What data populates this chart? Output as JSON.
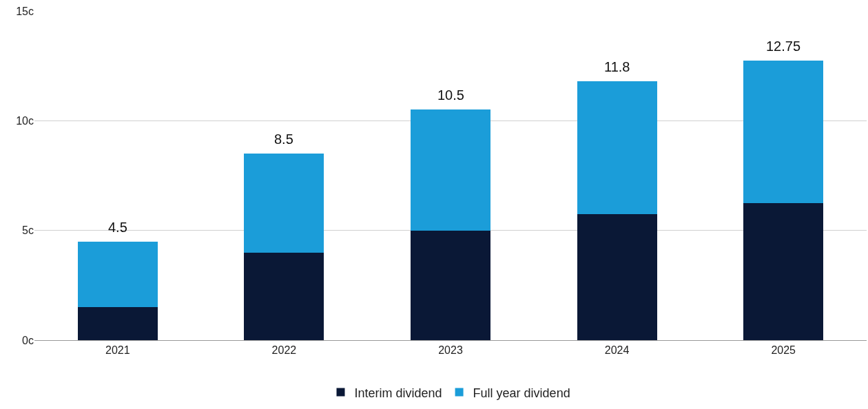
{
  "chart_data": {
    "type": "bar",
    "stacked": true,
    "categories": [
      "2021",
      "2022",
      "2023",
      "2024",
      "2025"
    ],
    "series": [
      {
        "name": "Interim dividend",
        "color": "#0a1836",
        "values": [
          1.5,
          4.0,
          5.0,
          5.75,
          6.25
        ]
      },
      {
        "name": "Full year dividend",
        "color": "#1b9dd9",
        "values": [
          3.0,
          4.5,
          5.5,
          6.05,
          6.5
        ]
      }
    ],
    "totals": [
      "4.5",
      "8.5",
      "10.5",
      "11.8",
      "12.75"
    ],
    "ylim": [
      0,
      15
    ],
    "yticks": [
      {
        "value": 0,
        "label": "0c"
      },
      {
        "value": 5,
        "label": "5c"
      },
      {
        "value": 10,
        "label": "10c"
      },
      {
        "value": 15,
        "label": "15c"
      }
    ],
    "grid": "y",
    "legend": "bottom"
  }
}
